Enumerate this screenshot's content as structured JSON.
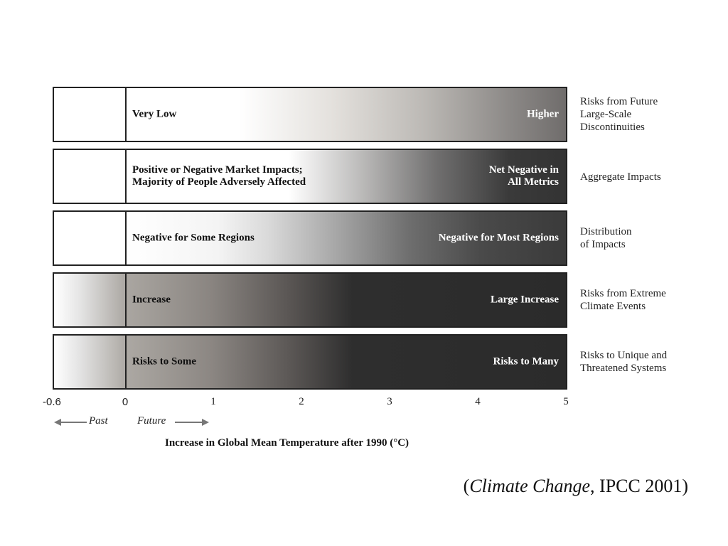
{
  "rows": [
    {
      "left": [
        "Very Low"
      ],
      "right": [
        "Higher"
      ],
      "category": [
        "Risks from Future",
        "Large-Scale",
        "Discontinuities"
      ]
    },
    {
      "left": [
        "Positive or Negative Market Impacts;",
        "Majority of People Adversely Affected"
      ],
      "right": [
        "Net Negative in",
        "All Metrics"
      ],
      "category": [
        "Aggregate Impacts"
      ]
    },
    {
      "left": [
        "Negative for Some Regions"
      ],
      "right": [
        "Negative for Most Regions"
      ],
      "category": [
        "Distribution",
        "of Impacts"
      ]
    },
    {
      "left": [
        "Increase"
      ],
      "right": [
        "Large Increase"
      ],
      "category": [
        "Risks from Extreme",
        "Climate Events"
      ]
    },
    {
      "left": [
        "Risks to Some"
      ],
      "right": [
        "Risks to Many"
      ],
      "category": [
        "Risks to Unique and",
        "Threatened Systems"
      ]
    }
  ],
  "axis": {
    "ticks": [
      "-0.6",
      "0",
      "1",
      "2",
      "3",
      "4",
      "5"
    ],
    "past_label": "Past",
    "future_label": "Future",
    "title": "Increase in Global Mean Temperature after 1990 (°C)"
  },
  "citation": {
    "open": "(",
    "italic": "Climate Change",
    "rest": ", IPCC 2001)"
  }
}
